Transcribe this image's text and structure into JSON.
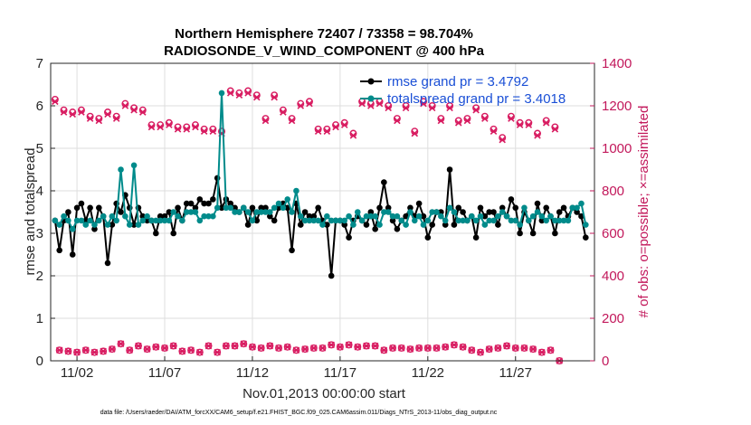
{
  "chart_data": {
    "type": "line",
    "title": "Northern Hemisphere 72407 / 73358 = 98.704%",
    "subtitle": "RADIOSONDE_V_WIND_COMPONENT @ 400 hPa",
    "xlabel": "Nov.01,2013 00:00:00 start",
    "ylabel": "rmse and totalspread",
    "ylabel_right": "# of obs: o=possible; ×=assimilated",
    "footnote": "data file: /Users/raeder/DAI/ATM_forcXX/CAM6_setup/f.e21.FHIST_BGC.f09_025.CAM6assim.011/Diags_NTrS_2013-11/obs_diag_output.nc",
    "x_range_days": [
      0.5,
      31.5
    ],
    "ylim": [
      0,
      7
    ],
    "ylim_right": [
      0,
      1400
    ],
    "x_ticks": [
      {
        "day": 2,
        "label": "11/02"
      },
      {
        "day": 7,
        "label": "11/07"
      },
      {
        "day": 12,
        "label": "11/12"
      },
      {
        "day": 17,
        "label": "11/17"
      },
      {
        "day": 22,
        "label": "11/22"
      },
      {
        "day": 27,
        "label": "11/27"
      }
    ],
    "y_ticks": [
      {
        "value": 0,
        "label": "0"
      },
      {
        "value": 1,
        "label": "1"
      },
      {
        "value": 2,
        "label": "2"
      },
      {
        "value": 3,
        "label": "3"
      },
      {
        "value": 4,
        "label": "4"
      },
      {
        "value": 5,
        "label": "5"
      },
      {
        "value": 6,
        "label": "6"
      },
      {
        "value": 7,
        "label": "7"
      }
    ],
    "y_ticks_right": [
      {
        "value": 0,
        "label": "0"
      },
      {
        "value": 200,
        "label": "200"
      },
      {
        "value": 400,
        "label": "400"
      },
      {
        "value": 600,
        "label": "600"
      },
      {
        "value": 800,
        "label": "800"
      },
      {
        "value": 1000,
        "label": "1000"
      },
      {
        "value": 1200,
        "label": "1200"
      },
      {
        "value": 1400,
        "label": "1400"
      }
    ],
    "x_start_day": 0.75,
    "x_step_days": 0.25,
    "series": [
      {
        "name": "rmse grand pr = 3.4792",
        "color": "#000000",
        "axis": "left",
        "values": [
          3.3,
          2.6,
          3.3,
          3.5,
          2.5,
          3.6,
          3.7,
          3.3,
          3.6,
          3.1,
          3.6,
          3.4,
          2.3,
          3.2,
          3.7,
          3.5,
          3.9,
          3.6,
          3.2,
          3.6,
          3.4,
          3.3,
          3.3,
          3.0,
          3.4,
          3.4,
          3.5,
          3.0,
          3.6,
          3.3,
          3.7,
          3.7,
          3.6,
          3.8,
          3.7,
          3.7,
          3.8,
          4.3,
          3.6,
          3.8,
          3.7,
          3.6,
          3.5,
          3.6,
          3.2,
          3.6,
          3.3,
          3.6,
          3.6,
          3.4,
          3.3,
          3.6,
          3.7,
          3.6,
          2.6,
          3.7,
          3.2,
          3.5,
          3.4,
          3.4,
          3.6,
          3.3,
          3.2,
          2.0,
          3.3,
          3.3,
          3.2,
          2.9,
          3.3,
          3.4,
          3.3,
          3.2,
          3.5,
          3.1,
          3.6,
          4.2,
          3.6,
          3.3,
          3.1,
          3.3,
          3.4,
          3.6,
          3.4,
          3.7,
          3.4,
          2.9,
          3.2,
          3.5,
          3.5,
          3.2,
          4.5,
          3.2,
          3.6,
          3.5,
          3.3,
          3.4,
          2.9,
          3.6,
          3.4,
          3.5,
          3.5,
          3.2,
          3.6,
          3.4,
          3.8,
          3.6,
          3.0,
          3.5,
          3.3,
          3.0,
          3.7,
          3.3,
          3.6,
          3.4,
          3.0,
          3.5,
          3.6,
          3.4,
          3.6,
          3.5,
          3.4,
          2.9
        ]
      },
      {
        "name": "totalspread grand pr = 3.4018",
        "color": "#008b8b",
        "axis": "left",
        "values": [
          3.3,
          3.2,
          3.4,
          3.3,
          3.1,
          3.3,
          3.3,
          3.2,
          3.3,
          3.2,
          3.3,
          3.4,
          3.2,
          3.4,
          3.3,
          4.5,
          3.4,
          3.2,
          4.6,
          3.2,
          3.3,
          3.4,
          3.3,
          3.3,
          3.3,
          3.3,
          3.3,
          3.5,
          3.4,
          3.3,
          3.5,
          3.5,
          3.5,
          3.3,
          3.4,
          3.4,
          3.4,
          3.6,
          6.3,
          3.6,
          3.6,
          3.5,
          3.5,
          3.6,
          3.5,
          3.3,
          3.5,
          3.5,
          3.5,
          3.5,
          3.6,
          3.7,
          3.6,
          3.8,
          3.5,
          4.0,
          3.4,
          3.3,
          3.3,
          3.3,
          3.3,
          3.2,
          3.4,
          3.3,
          3.3,
          3.3,
          3.3,
          3.4,
          3.2,
          3.5,
          3.3,
          3.4,
          3.4,
          3.4,
          3.2,
          3.5,
          3.5,
          3.4,
          3.4,
          3.3,
          3.2,
          3.5,
          3.3,
          3.4,
          3.2,
          3.3,
          3.5,
          3.5,
          3.4,
          3.3,
          3.6,
          3.5,
          3.3,
          3.3,
          3.3,
          3.4,
          3.3,
          3.4,
          3.2,
          3.3,
          3.3,
          3.4,
          3.5,
          3.4,
          3.3,
          3.3,
          3.2,
          3.6,
          3.3,
          3.4,
          3.5,
          3.4,
          3.3,
          3.4,
          3.3,
          3.3,
          3.3,
          3.3,
          3.6,
          3.6,
          3.7,
          3.2
        ]
      }
    ],
    "obs_possible": {
      "name": "# of obs possible",
      "color": "#d81b60",
      "axis": "right",
      "marker": "o",
      "values": [
        1230,
        50,
        1180,
        45,
        1170,
        40,
        1180,
        50,
        1150,
        40,
        1140,
        45,
        1170,
        55,
        1150,
        80,
        1210,
        50,
        1190,
        70,
        1180,
        55,
        1110,
        65,
        1110,
        60,
        1120,
        70,
        1100,
        45,
        1100,
        50,
        1110,
        40,
        1090,
        70,
        1090,
        40,
        1080,
        70,
        1270,
        70,
        1260,
        80,
        1270,
        65,
        1250,
        60,
        1140,
        70,
        1250,
        60,
        1180,
        65,
        1140,
        50,
        1210,
        55,
        1220,
        60,
        1090,
        60,
        1090,
        75,
        1110,
        65,
        1120,
        75,
        1070,
        65,
        1220,
        70,
        1210,
        70,
        1220,
        50,
        1200,
        60,
        1140,
        60,
        1200,
        55,
        1080,
        60,
        1220,
        60,
        1200,
        60,
        1140,
        65,
        1200,
        75,
        1130,
        65,
        1140,
        50,
        1190,
        40,
        1150,
        55,
        1090,
        60,
        1050,
        70,
        1150,
        60,
        1120,
        60,
        1120,
        55,
        1070,
        40,
        1130,
        50,
        1100,
        0
      ]
    },
    "obs_assimilated": {
      "name": "# of obs assimilated",
      "color": "#d81b60",
      "axis": "right",
      "marker": "x",
      "values": [
        1220,
        50,
        1170,
        45,
        1160,
        40,
        1170,
        50,
        1140,
        40,
        1130,
        45,
        1160,
        55,
        1140,
        80,
        1200,
        50,
        1180,
        70,
        1170,
        55,
        1100,
        65,
        1100,
        60,
        1110,
        70,
        1090,
        45,
        1090,
        50,
        1100,
        40,
        1080,
        70,
        1080,
        40,
        1070,
        70,
        1260,
        70,
        1250,
        80,
        1260,
        65,
        1240,
        60,
        1130,
        70,
        1240,
        60,
        1170,
        65,
        1130,
        50,
        1200,
        55,
        1210,
        60,
        1080,
        60,
        1080,
        75,
        1100,
        65,
        1110,
        75,
        1060,
        65,
        1210,
        70,
        1200,
        70,
        1210,
        50,
        1190,
        60,
        1130,
        60,
        1190,
        55,
        1070,
        60,
        1210,
        60,
        1190,
        60,
        1130,
        65,
        1190,
        75,
        1120,
        65,
        1130,
        50,
        1180,
        40,
        1140,
        55,
        1080,
        60,
        1040,
        70,
        1140,
        60,
        1110,
        60,
        1110,
        55,
        1060,
        40,
        1120,
        50,
        1090,
        0
      ]
    }
  }
}
